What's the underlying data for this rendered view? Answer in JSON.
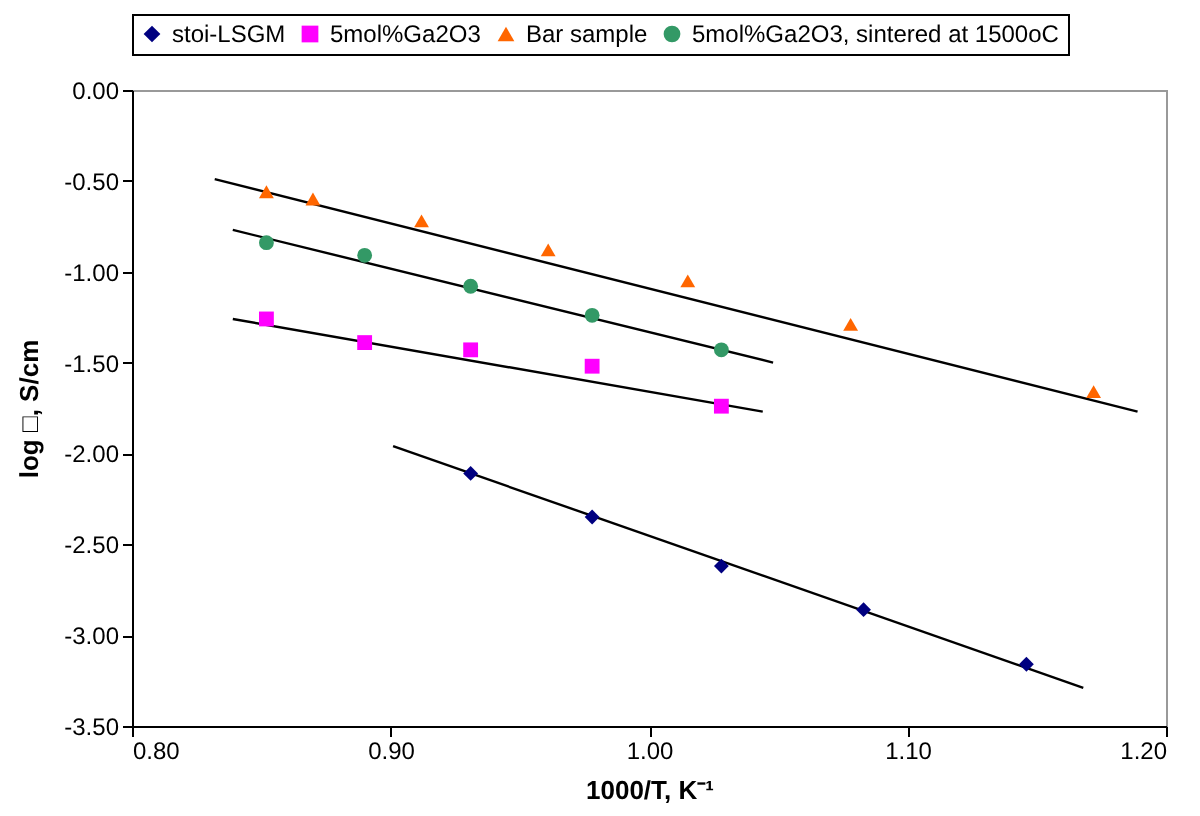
{
  "chart_data": {
    "type": "scatter",
    "xlabel": "1000/T, K⁻¹",
    "ylabel": "log □, S/cm",
    "xlim": [
      0.8,
      1.2
    ],
    "xticks": [
      {
        "value": 0.8,
        "label": "0.80"
      },
      {
        "value": 0.9,
        "label": "0.90"
      },
      {
        "value": 1.0,
        "label": "1.00"
      },
      {
        "value": 1.1,
        "label": "1.10"
      },
      {
        "value": 1.2,
        "label": "1.20"
      }
    ],
    "ylim": [
      -3.5,
      0
    ],
    "yticks": [
      {
        "value": 0,
        "label": "0.00"
      },
      {
        "value": -0.5,
        "label": "-0.50"
      },
      {
        "value": -1,
        "label": "-1.00"
      },
      {
        "value": -1.5,
        "label": "-1.50"
      },
      {
        "value": -2,
        "label": "-2.00"
      },
      {
        "value": -2.5,
        "label": "-2.50"
      },
      {
        "value": -3,
        "label": "-3.00"
      },
      {
        "value": -3.5,
        "label": "-3.50"
      }
    ],
    "grid": false,
    "legend": "top",
    "series": [
      {
        "name": "stoi-LSGM",
        "marker": "diamond",
        "color": "#000080",
        "x": [
          0.931,
          0.978,
          1.028,
          1.083,
          1.146
        ],
        "values": [
          -2.11,
          -2.35,
          -2.62,
          -2.86,
          -3.16
        ]
      },
      {
        "name": "5mol%Ga2O3",
        "marker": "square",
        "color": "#ff00ff",
        "x": [
          0.852,
          0.89,
          0.931,
          0.978,
          1.028
        ],
        "values": [
          -1.26,
          -1.39,
          -1.43,
          -1.52,
          -1.74
        ]
      },
      {
        "name": "Bar sample",
        "marker": "triangle",
        "color": "#ff6600",
        "x": [
          0.852,
          0.87,
          0.912,
          0.961,
          1.015,
          1.078,
          1.172
        ],
        "values": [
          -0.56,
          -0.6,
          -0.72,
          -0.88,
          -1.05,
          -1.29,
          -1.66
        ]
      },
      {
        "name": "5mol%Ga2O3, sintered at 1500oC",
        "marker": "circle",
        "color": "#339966",
        "x": [
          0.852,
          0.89,
          0.931,
          0.978,
          1.028
        ],
        "values": [
          -0.84,
          -0.91,
          -1.08,
          -1.24,
          -1.43
        ]
      },
      {
        "type": "line",
        "color": "#000000",
        "x": [
          0.901,
          1.168
        ],
        "values": [
          -1.96,
          -3.29
        ]
      },
      {
        "type": "line",
        "color": "#000000",
        "x": [
          0.839,
          1.044
        ],
        "values": [
          -1.26,
          -1.77
        ]
      },
      {
        "type": "line",
        "color": "#000000",
        "x": [
          0.832,
          1.189
        ],
        "values": [
          -0.49,
          -1.77
        ]
      },
      {
        "type": "line",
        "color": "#000000",
        "x": [
          0.839,
          1.048
        ],
        "values": [
          -0.77,
          -1.5
        ]
      }
    ]
  }
}
